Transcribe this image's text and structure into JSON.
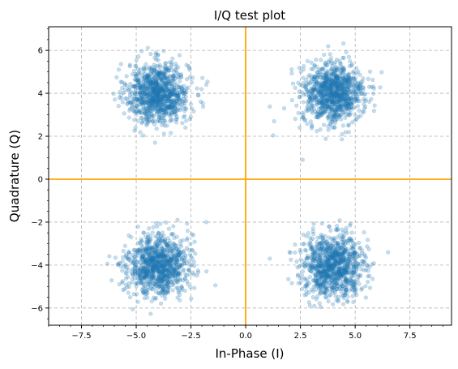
{
  "chart_data": {
    "type": "scatter",
    "title": "I/Q test plot",
    "xlabel": "In-Phase (I)",
    "ylabel": "Quadrature (Q)",
    "xlim": [
      -9.0,
      9.4
    ],
    "ylim": [
      -6.8,
      7.1
    ],
    "x_ticks": [
      -7.5,
      -5.0,
      -2.5,
      0.0,
      2.5,
      5.0,
      7.5
    ],
    "x_tick_labels": [
      "−7.5",
      "−5.0",
      "−2.5",
      "0.0",
      "2.5",
      "5.0",
      "7.5"
    ],
    "y_ticks": [
      -6,
      -4,
      -2,
      0,
      2,
      4,
      6
    ],
    "y_tick_labels": [
      "−6",
      "−4",
      "−2",
      "0",
      "2",
      "4",
      "6"
    ],
    "grid": true,
    "grid_style": "dashed",
    "reference_lines": {
      "vertical_x": 0,
      "horizontal_y": 0,
      "color": "#ffa500"
    },
    "point_color": "#1f77b4",
    "point_alpha": 0.25,
    "clusters": [
      {
        "center": [
          -4,
          4
        ],
        "spread": 0.7,
        "count": 1000
      },
      {
        "center": [
          4,
          4
        ],
        "spread": 0.7,
        "count": 1000
      },
      {
        "center": [
          -4,
          -4
        ],
        "spread": 0.7,
        "count": 1000
      },
      {
        "center": [
          4,
          -4
        ],
        "spread": 0.7,
        "count": 1000
      }
    ],
    "outliers": [
      [
        1.3,
        2.7
      ],
      [
        2.6,
        0.9
      ],
      [
        1.1,
        -3.7
      ],
      [
        -1.8,
        -2.0
      ],
      [
        -1.8,
        4.4
      ],
      [
        6.5,
        -3.4
      ]
    ]
  }
}
